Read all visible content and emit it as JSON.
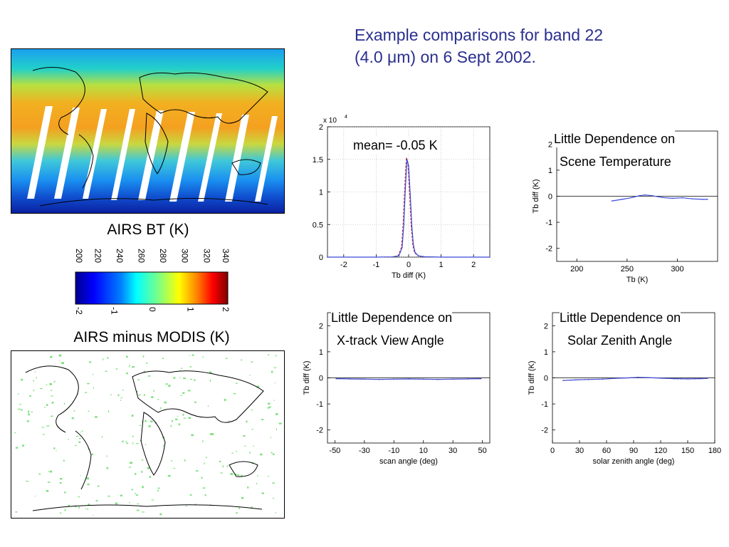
{
  "title": {
    "line1": "Example comparisons for band 22",
    "line2": "(4.0 μm) on 6 Sept 2002."
  },
  "maps": {
    "bt_caption": "AIRS BT (K)",
    "diff_caption": "AIRS minus MODIS (K)"
  },
  "colorbar": {
    "bt_ticks": [
      "200",
      "220",
      "240",
      "260",
      "280",
      "300",
      "320",
      "340"
    ],
    "diff_ticks": [
      "-2",
      "-1",
      "0",
      "1",
      "2"
    ],
    "colors": [
      "#00008f",
      "#0000ff",
      "#0080ff",
      "#00ffff",
      "#80ff80",
      "#ffff00",
      "#ff8000",
      "#ff0000",
      "#800000"
    ]
  },
  "colors": {
    "title": "#2b2f8f",
    "series_blue": "#3b4bd8",
    "series_red": "#d02020",
    "map_green": "#7ee07e"
  },
  "chart_data": [
    {
      "type": "line",
      "id": "histogram",
      "annotation": "mean= -0.05 K",
      "scale_label": "x 10",
      "scale_exp": "4",
      "xlabel": "Tb diff (K)",
      "ylabel": "",
      "xlim": [
        -2.5,
        2.5
      ],
      "ylim": [
        0,
        2
      ],
      "xticks": [
        "-2",
        "-1",
        "0",
        "1",
        "2"
      ],
      "yticks": [
        "0",
        "0.5",
        "1",
        "1.5",
        "2"
      ],
      "grid": true,
      "x": [
        -2.5,
        -1.0,
        -0.5,
        -0.3,
        -0.2,
        -0.15,
        -0.1,
        -0.05,
        0.0,
        0.05,
        0.1,
        0.15,
        0.2,
        0.3,
        0.5,
        1.0,
        2.5
      ],
      "y": [
        0,
        0,
        0.003,
        0.02,
        0.15,
        0.5,
        1.05,
        1.5,
        1.4,
        0.95,
        0.45,
        0.18,
        0.07,
        0.02,
        0.005,
        0,
        0
      ]
    },
    {
      "type": "line",
      "id": "scene-temp",
      "annotation_line1": "Little Dependence on",
      "annotation_line2": "Scene Temperature",
      "xlabel": "Tb (K)",
      "ylabel": "Tb diff (K)",
      "xlim": [
        180,
        340
      ],
      "ylim": [
        -2.5,
        2.5
      ],
      "xticks": [
        "200",
        "250",
        "300"
      ],
      "xtick_values": [
        200,
        250,
        300
      ],
      "yticks": [
        "-2",
        "-1",
        "0",
        "1",
        "2"
      ],
      "x": [
        235,
        245,
        255,
        262,
        268,
        275,
        285,
        295,
        305,
        315,
        325,
        330
      ],
      "y": [
        -0.18,
        -0.12,
        -0.05,
        0.02,
        0.05,
        0.02,
        -0.05,
        -0.08,
        -0.06,
        -0.1,
        -0.12,
        -0.12
      ]
    },
    {
      "type": "line",
      "id": "scan-angle",
      "annotation_line1": "Little Dependence on",
      "annotation_line2": "X-track View Angle",
      "xlabel": "scan angle (deg)",
      "ylabel": "Tb diff (K)",
      "xlim": [
        -55,
        55
      ],
      "ylim": [
        -2.5,
        2.5
      ],
      "xticks": [
        "-50",
        "-30",
        "-10",
        "10",
        "30",
        "50"
      ],
      "xtick_values": [
        -50,
        -30,
        -10,
        10,
        30,
        50
      ],
      "yticks": [
        "-2",
        "-1",
        "0",
        "1",
        "2"
      ],
      "x": [
        -49,
        -40,
        -30,
        -20,
        -10,
        0,
        10,
        20,
        30,
        40,
        49
      ],
      "y": [
        -0.03,
        -0.04,
        -0.05,
        -0.06,
        -0.05,
        -0.04,
        -0.05,
        -0.06,
        -0.05,
        -0.04,
        -0.03
      ]
    },
    {
      "type": "line",
      "id": "solar-zenith",
      "annotation_line1": "Little Dependence on",
      "annotation_line2": "Solar Zenith Angle",
      "xlabel": "solar zenith angle (deg)",
      "ylabel": "Tb diff (K)",
      "xlim": [
        0,
        180
      ],
      "ylim": [
        -2.5,
        2.5
      ],
      "xticks": [
        "0",
        "30",
        "60",
        "90",
        "120",
        "150",
        "180"
      ],
      "xtick_values": [
        0,
        30,
        60,
        90,
        120,
        150,
        180
      ],
      "yticks": [
        "-2",
        "-1",
        "0",
        "1",
        "2"
      ],
      "x": [
        12,
        25,
        40,
        55,
        70,
        85,
        95,
        105,
        120,
        135,
        150,
        165,
        172
      ],
      "y": [
        -0.1,
        -0.08,
        -0.06,
        -0.05,
        -0.02,
        0.0,
        0.02,
        0.01,
        -0.01,
        -0.03,
        -0.04,
        -0.03,
        -0.02
      ]
    }
  ]
}
